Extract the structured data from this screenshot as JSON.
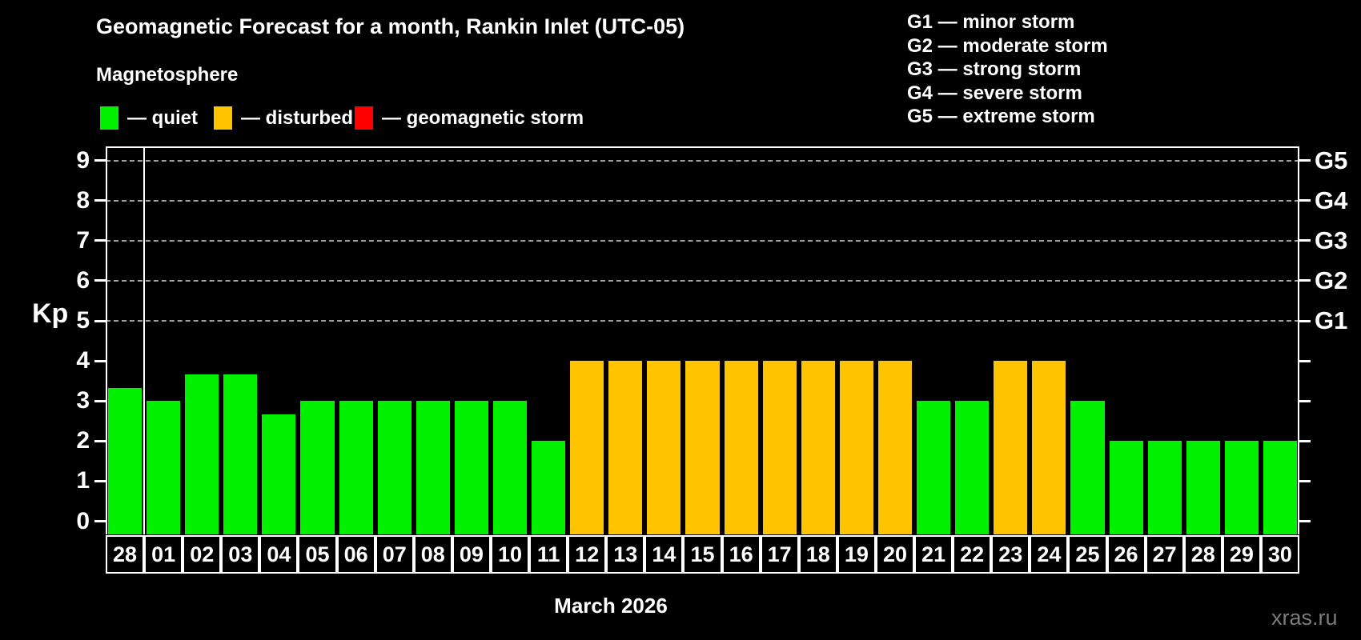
{
  "title": "Geomagnetic Forecast for a month, Rankin Inlet (UTC-05)",
  "subtitle": "Magnetosphere",
  "legend": [
    {
      "name": "quiet",
      "label": "— quiet",
      "color": "#00f000"
    },
    {
      "name": "disturbed",
      "label": "— disturbed",
      "color": "#ffc400"
    },
    {
      "name": "storm",
      "label": "— geomagnetic storm",
      "color": "#ff0000"
    }
  ],
  "g_legend": [
    "G1 — minor storm",
    "G2 — moderate storm",
    "G3 — strong storm",
    "G4 — severe storm",
    "G5 — extreme storm"
  ],
  "watermark": "xras.ru",
  "chart_data": {
    "type": "bar",
    "title": "Geomagnetic Forecast for a month, Rankin Inlet (UTC-05)",
    "xlabel": "March 2026",
    "ylabel": "Kp",
    "ylim": [
      0,
      9
    ],
    "yticks": [
      0,
      1,
      2,
      3,
      4,
      5,
      6,
      7,
      8,
      9
    ],
    "gridlines_at": [
      5,
      6,
      7,
      8,
      9
    ],
    "grid": "dashed horizontal lines only at G-storm levels",
    "legend_position": "top",
    "right_axis_labels": [
      {
        "label": "G1",
        "kp": 5
      },
      {
        "label": "G2",
        "kp": 6
      },
      {
        "label": "G3",
        "kp": 7
      },
      {
        "label": "G4",
        "kp": 8
      },
      {
        "label": "G5",
        "kp": 9
      }
    ],
    "categories": [
      "28",
      "01",
      "02",
      "03",
      "04",
      "05",
      "06",
      "07",
      "08",
      "09",
      "10",
      "11",
      "12",
      "13",
      "14",
      "15",
      "16",
      "17",
      "18",
      "19",
      "20",
      "21",
      "22",
      "23",
      "24",
      "25",
      "26",
      "27",
      "28",
      "29",
      "30"
    ],
    "values": [
      3.33,
      3,
      3.67,
      3.67,
      2.67,
      3,
      3,
      3,
      3,
      3,
      3,
      2,
      4,
      4,
      4,
      4,
      4,
      4,
      4,
      4,
      4,
      3,
      3,
      4,
      4,
      3,
      2,
      2,
      2,
      2,
      2
    ],
    "states": [
      "quiet",
      "quiet",
      "quiet",
      "quiet",
      "quiet",
      "quiet",
      "quiet",
      "quiet",
      "quiet",
      "quiet",
      "quiet",
      "quiet",
      "disturbed",
      "disturbed",
      "disturbed",
      "disturbed",
      "disturbed",
      "disturbed",
      "disturbed",
      "disturbed",
      "disturbed",
      "quiet",
      "quiet",
      "disturbed",
      "disturbed",
      "quiet",
      "quiet",
      "quiet",
      "quiet",
      "quiet",
      "quiet"
    ],
    "colors": {
      "quiet": "#00f000",
      "disturbed": "#ffc400",
      "storm": "#ff0000"
    },
    "separator_after_index": 0
  }
}
